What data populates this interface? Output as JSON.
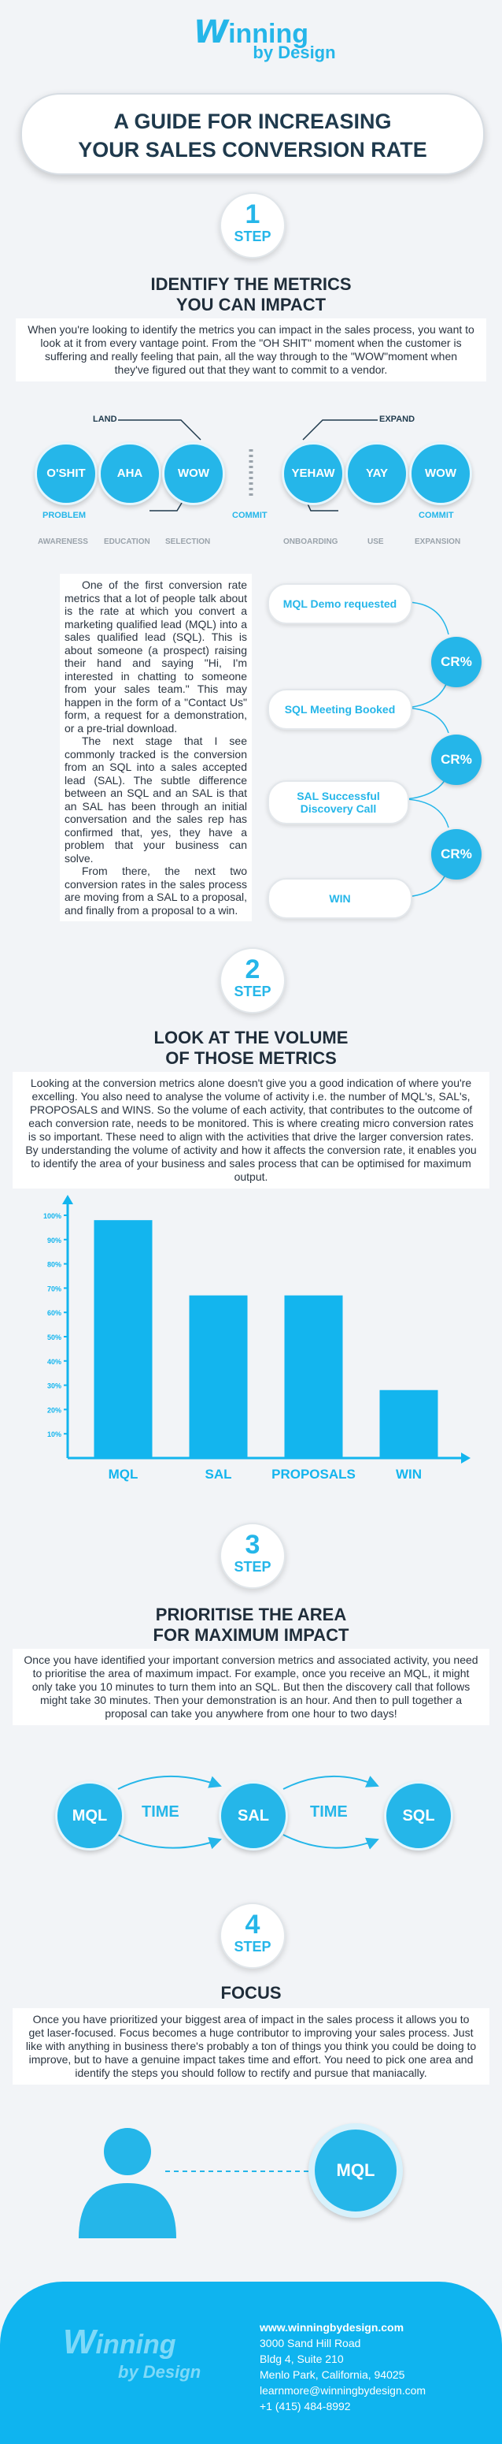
{
  "logo": {
    "wordmark": "inning",
    "sub": "by Design"
  },
  "title": {
    "line1": "A GUIDE FOR INCREASING",
    "line2": "YOUR SALES CONVERSION RATE"
  },
  "step_label": "STEP",
  "step1": {
    "num": "1",
    "heading_line1": "IDENTIFY THE METRICS",
    "heading_line2": "YOU CAN IMPACT",
    "intro": "When you're looking to identify the metrics you can impact in the sales process, you want to look at it from every vantage point. From the \"OH SHIT\" moment when the customer is suffering and really feeling that pain, all the way through to the \"WOW\"moment when they've figured out that they want to commit to a vendor.",
    "land_label": "LAND",
    "expand_label": "EXPAND",
    "bubbles_left": [
      "O'SHIT",
      "AHA",
      "WOW"
    ],
    "bubbles_right": [
      "YEHAW",
      "YAY",
      "WOW"
    ],
    "problem_label": "PROBLEM",
    "commit_center": "COMMIT",
    "commit_right": "COMMIT",
    "stages": [
      "AWARENESS",
      "EDUCATION",
      "SELECTION",
      "ONBOARDING",
      "USE",
      "EXPANSION"
    ],
    "body_p1": "One of the first conversion rate metrics that a lot of people talk about is the rate at which you convert a marketing qualified lead (MQL) into a sales qualified lead (SQL). This is about someone (a prospect) raising their hand and saying \"Hi, I'm interested in chatting to someone from your sales team.\" This may happen in the form of a \"Contact Us\" form, a request for a demonstration, or a pre-trial download.",
    "body_p2": "The next stage that I see commonly tracked is the conversion from an SQL into a sales accepted lead (SAL). The subtle difference between an SQL and an SAL is that an SAL has been through an initial conversation and the sales rep has confirmed that, yes, they have a problem that your business can solve.",
    "body_p3": "From there, the next two conversion rates in the sales process are moving from a SAL to a proposal, and finally from a proposal to a win.",
    "funnel": [
      "MQL Demo requested",
      "SQL Meeting Booked",
      "SAL Successful Discovery Call",
      "WIN"
    ],
    "cr_label": "CR%"
  },
  "step2": {
    "num": "2",
    "heading_line1": "LOOK AT THE VOLUME",
    "heading_line2": "OF THOSE METRICS",
    "intro": "Looking at the conversion metrics alone doesn't give you a good indication of where you're excelling. You also need to analyse the volume of activity i.e. the number of MQL's, SAL's, PROPOSALS and WINS. So the volume of each activity, that contributes to the outcome of each conversion rate, needs to be monitored. This is where creating micro conversion rates is so important. These need to align with the activities that drive the larger conversion rates. By understanding the volume of activity and how it affects the conversion rate, it enables you to identify the area of your business and sales process that can be optimised for maximum output."
  },
  "chart_data": {
    "type": "bar",
    "categories": [
      "MQL",
      "SAL",
      "PROPOSALS",
      "WIN"
    ],
    "values": [
      98,
      67,
      67,
      28
    ],
    "yticks": [
      "100%",
      "90%",
      "80%",
      "70%",
      "60%",
      "50%",
      "40%",
      "30%",
      "20%",
      "10%"
    ],
    "ylim": [
      0,
      100
    ],
    "color": "#13b5ee"
  },
  "step3": {
    "num": "3",
    "heading_line1": "PRIORITISE THE AREA",
    "heading_line2": "FOR MAXIMUM IMPACT",
    "intro": "Once you have identified your important conversion metrics and associated activity, you need to prioritise the area of maximum impact. For example, once you receive an MQL, it might only take you 10 minutes to turn them into an SQL. But then the discovery call that follows might take 30 minutes. Then your demonstration is an hour. And then to pull together a proposal can take you anywhere from one hour to two days!",
    "flow": [
      "MQL",
      "TIME",
      "SAL",
      "TIME",
      "SQL"
    ]
  },
  "step4": {
    "num": "4",
    "heading": "FOCUS",
    "intro": "Once you have prioritized your biggest area of impact in the sales process it allows you to get laser-focused. Focus becomes a huge contributor to improving your sales process. Just like with anything in business there's probably a ton of things you think you could be doing to improve, but to have a genuine impact takes time and effort. You need to pick one area and identify the steps you should follow to rectify and pursue that maniacally.",
    "target": "MQL"
  },
  "footer": {
    "website": "www.winningbydesign.com",
    "address1": "3000 Sand Hill Road",
    "address2": "Bldg 4, Suite 210",
    "address3": "Menlo Park, California, 94025",
    "email": "learnmore@winningbydesign.com",
    "phone": "+1 (415) 484-8992"
  },
  "colors": {
    "accent": "#25b6e9",
    "dark": "#1f3a4d",
    "background": "#f2f4f7"
  }
}
